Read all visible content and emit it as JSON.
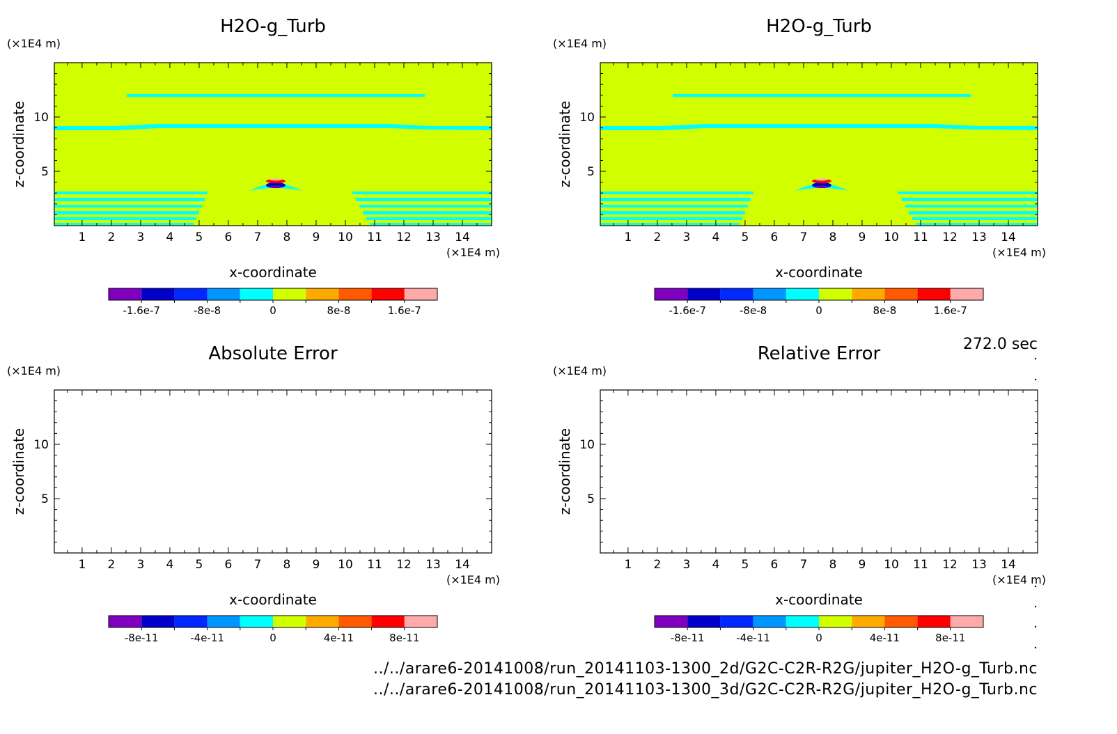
{
  "figure": {
    "time_label": "272.0 sec",
    "footer_lines": [
      "../../arare6-20141008/run_20141103-1300_2d/G2C-C2R-R2G/jupiter_H2O-g_Turb.nc",
      "../../arare6-20141008/run_20141103-1300_3d/G2C-C2R-R2G/jupiter_H2O-g_Turb.nc"
    ]
  },
  "colors": {
    "scale": [
      "#7f00bf",
      "#0000c8",
      "#0028ff",
      "#0096ff",
      "#00ffff",
      "#d2ff00",
      "#ffaa00",
      "#ff5a00",
      "#ff0000",
      "#ffaaaa"
    ],
    "background": "#d2ff00",
    "band": "#00ffff"
  },
  "chart_data": [
    {
      "type": "heatmap",
      "title": "H2O-g_Turb",
      "xlabel": "x-coordinate",
      "ylabel": "z-coordinate",
      "x_unit": "(×1E4 m)",
      "y_unit": "(×1E4 m)",
      "xlim": [
        0.05,
        15
      ],
      "ylim": [
        0,
        15
      ],
      "x_ticks": [
        1,
        2,
        3,
        4,
        5,
        6,
        7,
        8,
        9,
        10,
        11,
        12,
        13,
        14
      ],
      "y_ticks": [
        5,
        10
      ],
      "colorbar_ticks": [
        "-1.6e-7",
        "-8e-8",
        "0",
        "8e-8",
        "1.6e-7"
      ],
      "filled": true
    },
    {
      "type": "heatmap",
      "title": "H2O-g_Turb",
      "xlabel": "x-coordinate",
      "ylabel": "z-coordinate",
      "x_unit": "(×1E4 m)",
      "y_unit": "(×1E4 m)",
      "xlim": [
        0.05,
        15
      ],
      "ylim": [
        0,
        15
      ],
      "x_ticks": [
        1,
        2,
        3,
        4,
        5,
        6,
        7,
        8,
        9,
        10,
        11,
        12,
        13,
        14
      ],
      "y_ticks": [
        5,
        10
      ],
      "colorbar_ticks": [
        "-1.6e-7",
        "-8e-8",
        "0",
        "8e-8",
        "1.6e-7"
      ],
      "filled": true
    },
    {
      "type": "heatmap",
      "title": "Absolute Error",
      "xlabel": "x-coordinate",
      "ylabel": "z-coordinate",
      "x_unit": "(×1E4 m)",
      "y_unit": "(×1E4 m)",
      "xlim": [
        0.05,
        15
      ],
      "ylim": [
        0,
        15
      ],
      "x_ticks": [
        1,
        2,
        3,
        4,
        5,
        6,
        7,
        8,
        9,
        10,
        11,
        12,
        13,
        14
      ],
      "y_ticks": [
        5,
        10
      ],
      "colorbar_ticks": [
        "-8e-11",
        "-4e-11",
        "0",
        "4e-11",
        "8e-11"
      ],
      "filled": false
    },
    {
      "type": "heatmap",
      "title": "Relative Error",
      "xlabel": "x-coordinate",
      "ylabel": "z-coordinate",
      "x_unit": "(×1E4 m)",
      "y_unit": "(×1E4 m)",
      "xlim": [
        0.05,
        15
      ],
      "ylim": [
        0,
        15
      ],
      "x_ticks": [
        1,
        2,
        3,
        4,
        5,
        6,
        7,
        8,
        9,
        10,
        11,
        12,
        13,
        14
      ],
      "y_ticks": [
        5,
        10
      ],
      "colorbar_ticks": [
        "-8e-11",
        "-4e-11",
        "0",
        "4e-11",
        "8e-11"
      ],
      "filled": false
    }
  ]
}
